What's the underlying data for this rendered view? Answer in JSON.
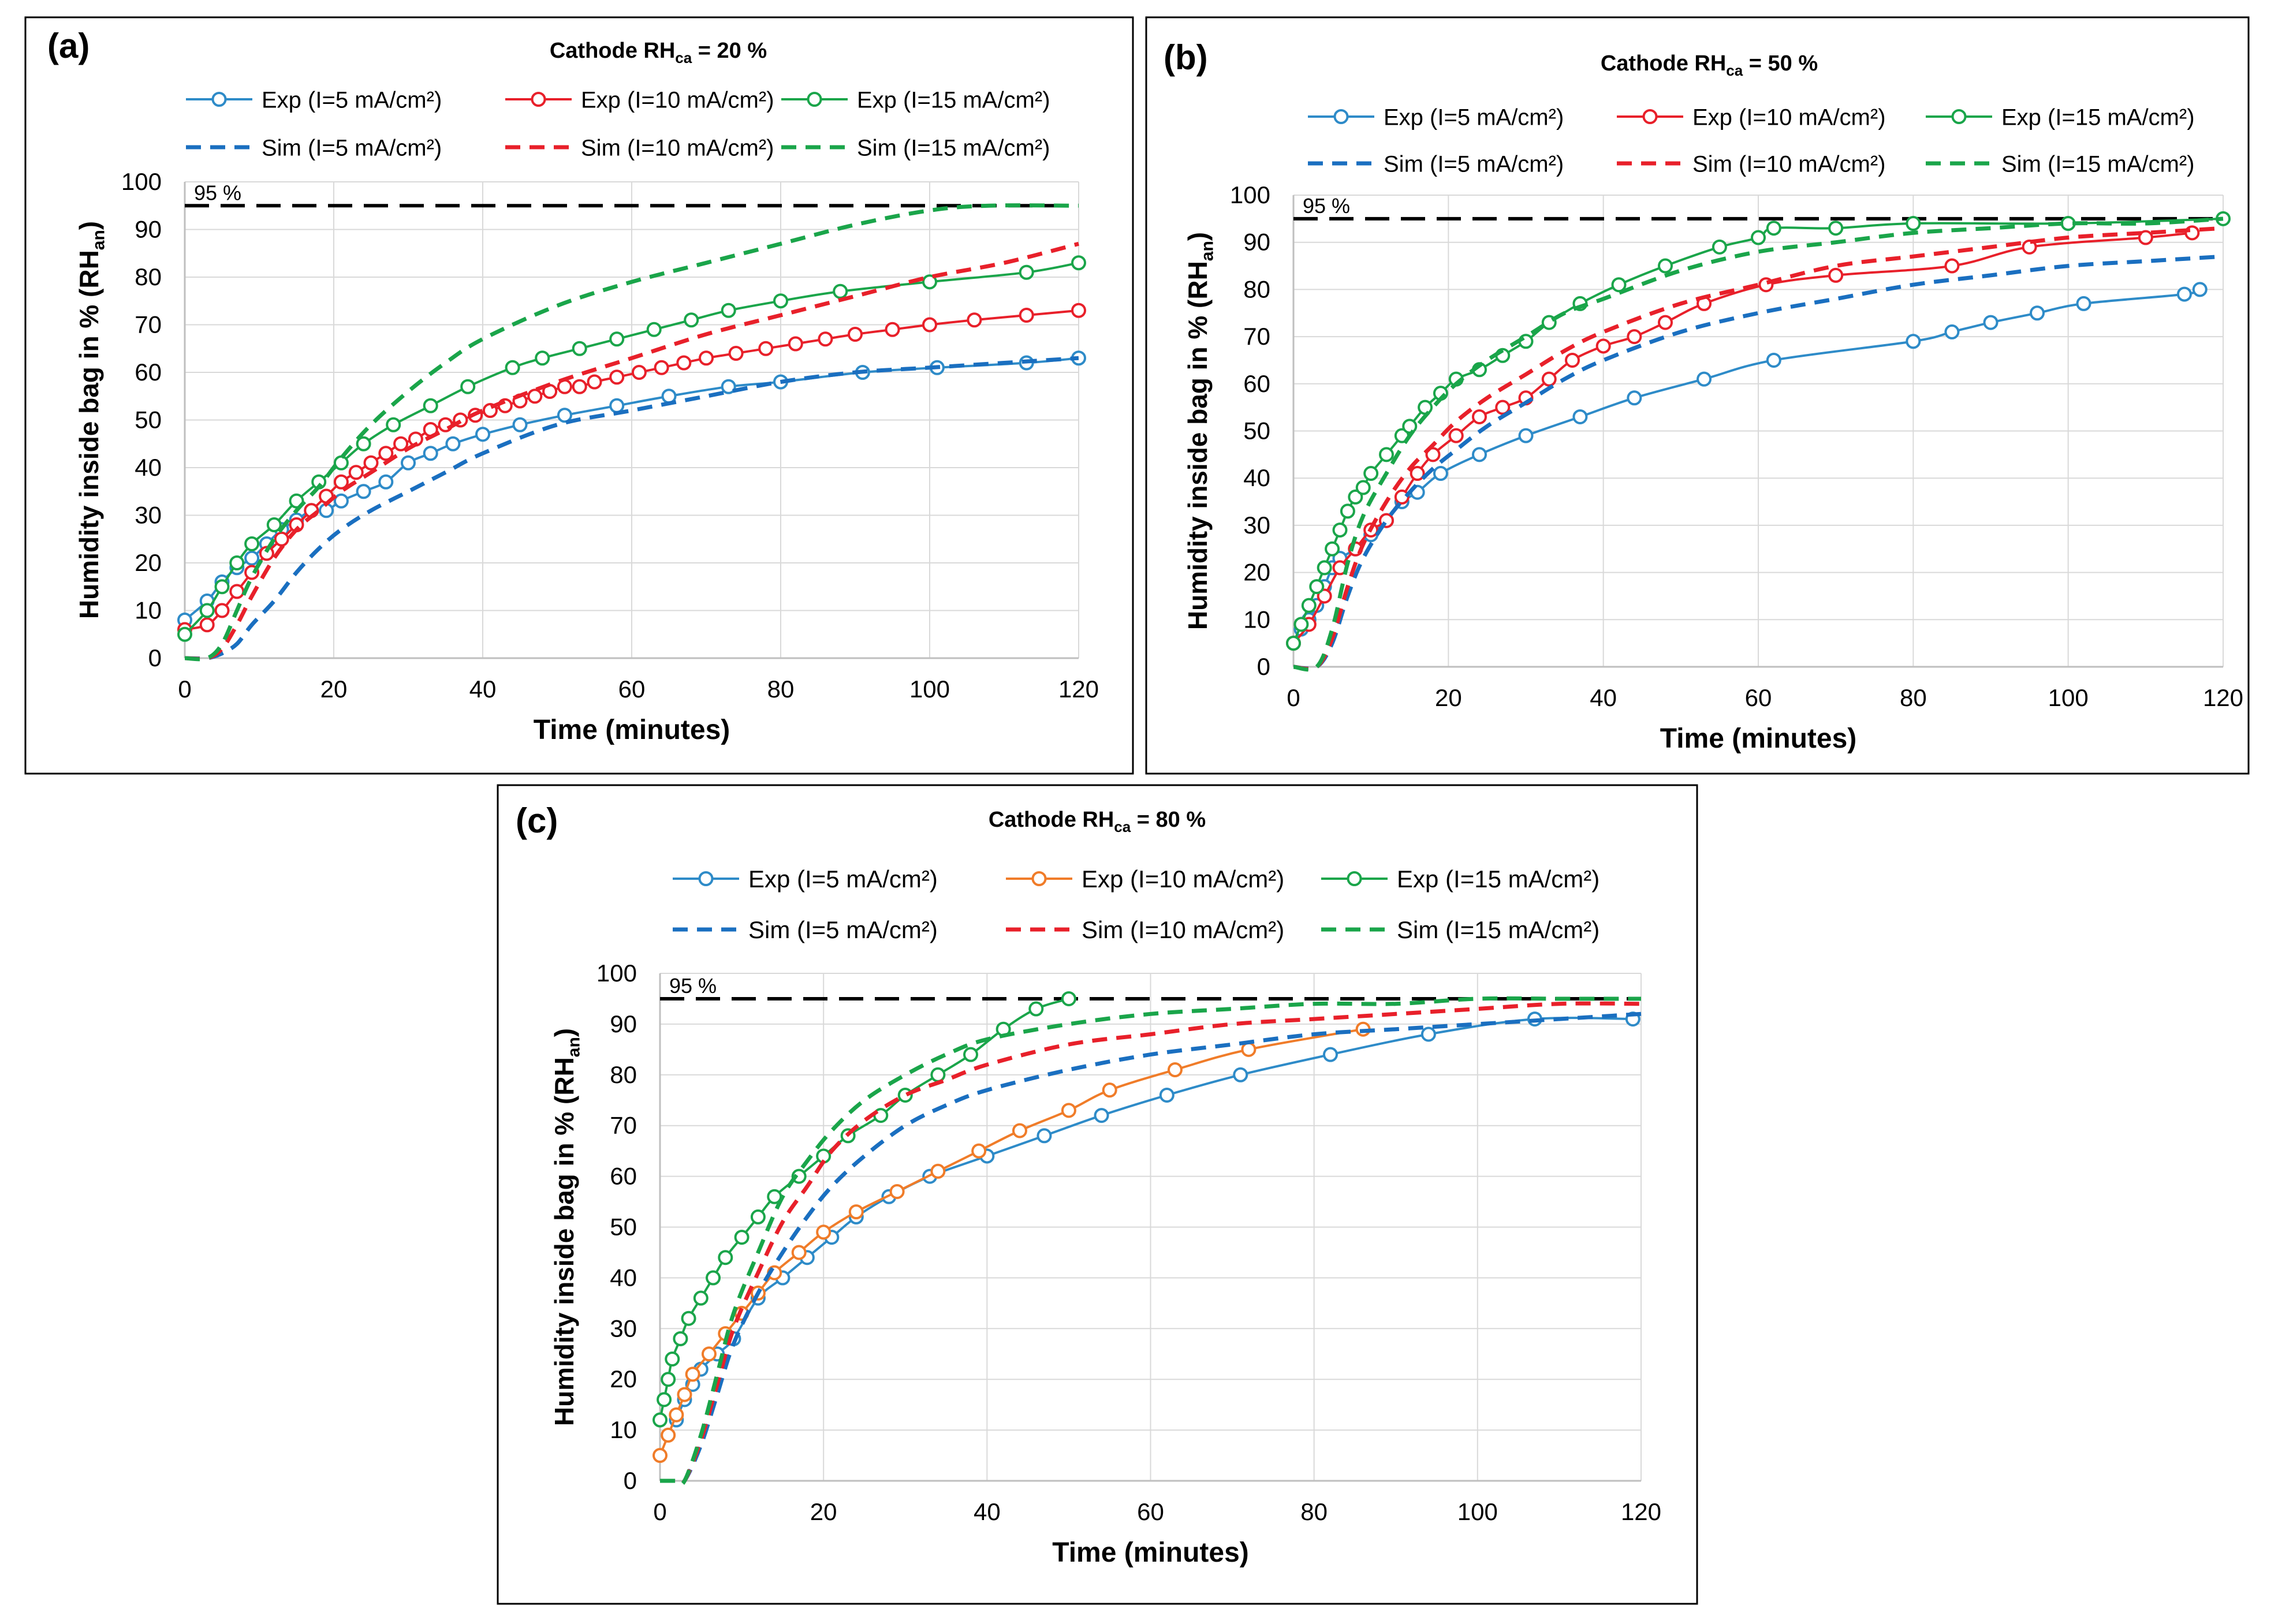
{
  "ref_label": "95 %",
  "chart_data": [
    {
      "type": "line",
      "panel_label": "(a)",
      "title_prefix": "Cathode RH",
      "title_sub": "ca",
      "title_suffix": " = 20 %",
      "xlabel": "Time (minutes)",
      "ylabel_prefix": "Humidity inside bag in % (RH",
      "ylabel_sub": "an",
      "ylabel_suffix": ")",
      "xlim": [
        0,
        120
      ],
      "ylim": [
        0,
        100
      ],
      "xticks": [
        0,
        20,
        40,
        60,
        80,
        100,
        120
      ],
      "yticks": [
        0,
        10,
        20,
        30,
        40,
        50,
        60,
        70,
        80,
        90,
        100
      ],
      "reference_line": {
        "y": 95
      },
      "series": [
        {
          "name": "Exp (I=5 mA/cm²)",
          "style": "exp",
          "color": "#2e8bc8",
          "x": [
            0,
            3,
            5,
            7,
            9,
            11,
            13,
            15,
            17,
            19,
            21,
            24,
            27,
            30,
            33,
            36,
            40,
            45,
            51,
            58,
            65,
            73,
            80,
            91,
            101,
            113,
            120
          ],
          "y": [
            8,
            12,
            16,
            19,
            21,
            24,
            27,
            29,
            31,
            31,
            33,
            35,
            37,
            41,
            43,
            45,
            47,
            49,
            51,
            53,
            55,
            57,
            58,
            60,
            61,
            62,
            63
          ]
        },
        {
          "name": "Exp (I=10 mA/cm²)",
          "style": "exp",
          "color": "#e8202a",
          "x": [
            0,
            3,
            5,
            7,
            9,
            11,
            13,
            15,
            17,
            19,
            21,
            23,
            25,
            27,
            29,
            31,
            33,
            35,
            37,
            39,
            41,
            43,
            45,
            47,
            49,
            51,
            53,
            55,
            58,
            61,
            64,
            67,
            70,
            74,
            78,
            82,
            86,
            90,
            95,
            100,
            106,
            113,
            120
          ],
          "y": [
            6,
            7,
            10,
            14,
            18,
            22,
            25,
            28,
            31,
            34,
            37,
            39,
            41,
            43,
            45,
            46,
            48,
            49,
            50,
            51,
            52,
            53,
            54,
            55,
            56,
            57,
            57,
            58,
            59,
            60,
            61,
            62,
            63,
            64,
            65,
            66,
            67,
            68,
            69,
            70,
            71,
            72,
            73
          ]
        },
        {
          "name": "Exp (I=15 mA/cm²)",
          "style": "exp",
          "color": "#1aa54a",
          "x": [
            0,
            3,
            5,
            7,
            9,
            12,
            15,
            18,
            21,
            24,
            28,
            33,
            38,
            44,
            48,
            53,
            58,
            63,
            68,
            73,
            80,
            88,
            100,
            113,
            120
          ],
          "y": [
            5,
            10,
            15,
            20,
            24,
            28,
            33,
            37,
            41,
            45,
            49,
            53,
            57,
            61,
            63,
            65,
            67,
            69,
            71,
            73,
            75,
            77,
            79,
            81,
            83
          ]
        },
        {
          "name": "Sim (I=5 mA/cm²)",
          "style": "sim",
          "color": "#1a6fc0",
          "x": [
            0,
            3,
            5,
            7,
            9,
            12,
            15,
            18,
            21,
            25,
            30,
            35,
            40,
            50,
            60,
            70,
            80,
            90,
            100,
            110,
            120
          ],
          "y": [
            0,
            0,
            1,
            3,
            7,
            12,
            18,
            23,
            27,
            31,
            35,
            39,
            43,
            49,
            52,
            55,
            58,
            60,
            61,
            62,
            63
          ]
        },
        {
          "name": "Sim (I=10 mA/cm²)",
          "style": "sim",
          "color": "#e8202a",
          "x": [
            0,
            3,
            5,
            7,
            9,
            12,
            15,
            18,
            21,
            25,
            30,
            35,
            40,
            50,
            60,
            70,
            80,
            90,
            100,
            110,
            120
          ],
          "y": [
            0,
            0,
            2,
            7,
            13,
            21,
            27,
            31,
            35,
            39,
            44,
            48,
            52,
            58,
            63,
            68,
            72,
            76,
            80,
            83,
            87
          ]
        },
        {
          "name": "Sim (I=15 mA/cm²)",
          "style": "sim",
          "color": "#1aa54a",
          "x": [
            0,
            3,
            5,
            7,
            9,
            12,
            15,
            18,
            21,
            25,
            30,
            35,
            40,
            50,
            60,
            70,
            80,
            90,
            100,
            108,
            120
          ],
          "y": [
            0,
            0,
            3,
            10,
            17,
            25,
            31,
            36,
            42,
            49,
            56,
            62,
            67,
            74,
            79,
            83,
            87,
            91,
            94,
            95,
            95
          ]
        }
      ]
    },
    {
      "type": "line",
      "panel_label": "(b)",
      "title_prefix": "Cathode RH",
      "title_sub": "ca",
      "title_suffix": " = 50 %",
      "xlabel": "Time (minutes)",
      "ylabel_prefix": "Humidity inside bag in % (RH",
      "ylabel_sub": "an",
      "ylabel_suffix": ")",
      "xlim": [
        0,
        120
      ],
      "ylim": [
        0,
        100
      ],
      "xticks": [
        0,
        20,
        40,
        60,
        80,
        100,
        120
      ],
      "yticks": [
        0,
        10,
        20,
        30,
        40,
        50,
        60,
        70,
        80,
        90,
        100
      ],
      "reference_line": {
        "y": 95
      },
      "series": [
        {
          "name": "Exp (I=5 mA/cm²)",
          "style": "exp",
          "color": "#2e8bc8",
          "x": [
            0,
            1,
            2,
            3,
            4,
            5,
            6,
            8,
            10,
            12,
            14,
            16,
            19,
            24,
            30,
            37,
            44,
            53,
            62,
            80,
            85,
            90,
            96,
            102,
            115,
            117
          ],
          "y": [
            5,
            8,
            10,
            13,
            17,
            21,
            23,
            25,
            28,
            31,
            35,
            37,
            41,
            45,
            49,
            53,
            57,
            61,
            65,
            69,
            71,
            73,
            75,
            77,
            79,
            80
          ]
        },
        {
          "name": "Exp (I=10 mA/cm²)",
          "style": "exp",
          "color": "#e8202a",
          "x": [
            0,
            2,
            4,
            6,
            8,
            10,
            12,
            14,
            16,
            18,
            21,
            24,
            27,
            30,
            33,
            36,
            40,
            44,
            48,
            53,
            61,
            70,
            85,
            95,
            110,
            116
          ],
          "y": [
            5,
            9,
            15,
            21,
            25,
            29,
            31,
            36,
            41,
            45,
            49,
            53,
            55,
            57,
            61,
            65,
            68,
            70,
            73,
            77,
            81,
            83,
            85,
            89,
            91,
            92
          ]
        },
        {
          "name": "Exp (I=15 mA/cm²)",
          "style": "exp",
          "color": "#1aa54a",
          "x": [
            0,
            1,
            2,
            3,
            4,
            5,
            6,
            7,
            8,
            9,
            10,
            12,
            14,
            15,
            17,
            19,
            21,
            24,
            27,
            30,
            33,
            37,
            42,
            48,
            55,
            60,
            62,
            70,
            80,
            100,
            120
          ],
          "y": [
            5,
            9,
            13,
            17,
            21,
            25,
            29,
            33,
            36,
            38,
            41,
            45,
            49,
            51,
            55,
            58,
            61,
            63,
            66,
            69,
            73,
            77,
            81,
            85,
            89,
            91,
            93,
            93,
            94,
            94,
            95
          ]
        },
        {
          "name": "Sim (I=5 mA/cm²)",
          "style": "sim",
          "color": "#1a6fc0",
          "x": [
            0,
            3,
            5,
            7,
            9,
            12,
            15,
            18,
            21,
            25,
            30,
            35,
            40,
            50,
            60,
            70,
            80,
            90,
            100,
            110,
            120
          ],
          "y": [
            0,
            0,
            5,
            15,
            23,
            31,
            37,
            42,
            46,
            51,
            56,
            61,
            65,
            71,
            75,
            78,
            81,
            83,
            85,
            86,
            87
          ]
        },
        {
          "name": "Sim (I=10 mA/cm²)",
          "style": "sim",
          "color": "#e8202a",
          "x": [
            0,
            3,
            5,
            7,
            9,
            12,
            15,
            18,
            21,
            25,
            30,
            35,
            40,
            50,
            60,
            70,
            80,
            90,
            100,
            110,
            120
          ],
          "y": [
            0,
            0,
            6,
            17,
            26,
            35,
            42,
            47,
            52,
            57,
            62,
            67,
            71,
            77,
            81,
            85,
            87,
            89,
            91,
            92,
            93
          ]
        },
        {
          "name": "Sim (I=15 mA/cm²)",
          "style": "sim",
          "color": "#1aa54a",
          "x": [
            0,
            3,
            5,
            7,
            9,
            12,
            15,
            18,
            21,
            25,
            30,
            35,
            40,
            50,
            60,
            70,
            80,
            90,
            100,
            110,
            120
          ],
          "y": [
            0,
            0,
            8,
            22,
            32,
            41,
            49,
            55,
            60,
            65,
            70,
            75,
            78,
            84,
            88,
            90,
            92,
            93,
            94,
            94,
            95
          ]
        }
      ]
    },
    {
      "type": "line",
      "panel_label": "(c)",
      "title_prefix": "Cathode RH",
      "title_sub": "ca",
      "title_suffix": " = 80 %",
      "xlabel": "Time (minutes)",
      "ylabel_prefix": "Humidity inside bag in % (RH",
      "ylabel_sub": "an",
      "ylabel_suffix": ")",
      "xlim": [
        0,
        120
      ],
      "ylim": [
        0,
        100
      ],
      "xticks": [
        0,
        20,
        40,
        60,
        80,
        100,
        120
      ],
      "yticks": [
        0,
        10,
        20,
        30,
        40,
        50,
        60,
        70,
        80,
        90,
        100
      ],
      "reference_line": {
        "y": 95
      },
      "series": [
        {
          "name": "Exp (I=5 mA/cm²)",
          "style": "exp",
          "color": "#2e8bc8",
          "x": [
            2,
            3,
            4,
            5,
            7,
            9,
            12,
            15,
            18,
            21,
            24,
            28,
            33,
            40,
            47,
            54,
            62,
            71,
            82,
            94,
            107,
            119
          ],
          "y": [
            12,
            16,
            19,
            22,
            25,
            28,
            36,
            40,
            44,
            48,
            52,
            56,
            60,
            64,
            68,
            72,
            76,
            80,
            84,
            88,
            91,
            91
          ]
        },
        {
          "name": "Exp (I=10 mA/cm²)",
          "style": "exp",
          "color": "#f07c29",
          "x": [
            0,
            1,
            2,
            3,
            4,
            6,
            8,
            10,
            12,
            14,
            17,
            20,
            24,
            29,
            34,
            39,
            44,
            50,
            55,
            63,
            72,
            86
          ],
          "y": [
            5,
            9,
            13,
            17,
            21,
            25,
            29,
            33,
            37,
            41,
            45,
            49,
            53,
            57,
            61,
            65,
            69,
            73,
            77,
            81,
            85,
            89
          ]
        },
        {
          "name": "Exp (I=15 mA/cm²)",
          "style": "exp",
          "color": "#1aa54a",
          "x": [
            0,
            0.5,
            1,
            1.5,
            2.5,
            3.5,
            5,
            6.5,
            8,
            10,
            12,
            14,
            17,
            20,
            23,
            27,
            30,
            34,
            38,
            42,
            46,
            50
          ],
          "y": [
            12,
            16,
            20,
            24,
            28,
            32,
            36,
            40,
            44,
            48,
            52,
            56,
            60,
            64,
            68,
            72,
            76,
            80,
            84,
            89,
            93,
            95
          ]
        },
        {
          "name": "Sim (I=5 mA/cm²)",
          "style": "sim",
          "color": "#1a6fc0",
          "x": [
            0,
            2,
            3,
            5,
            7,
            9,
            12,
            15,
            18,
            21,
            25,
            30,
            35,
            40,
            50,
            60,
            70,
            80,
            90,
            100,
            110,
            120
          ],
          "y": [
            0,
            0,
            0,
            7,
            17,
            27,
            37,
            45,
            52,
            58,
            64,
            70,
            74,
            77,
            81,
            84,
            86,
            88,
            89,
            90,
            91,
            92
          ]
        },
        {
          "name": "Sim (I=10 mA/cm²)",
          "style": "sim",
          "color": "#e8202a",
          "x": [
            0,
            2,
            3,
            5,
            7,
            9,
            12,
            15,
            18,
            21,
            25,
            30,
            35,
            40,
            50,
            60,
            70,
            80,
            90,
            100,
            110,
            120
          ],
          "y": [
            0,
            0,
            0,
            8,
            19,
            30,
            41,
            51,
            58,
            65,
            71,
            76,
            79,
            82,
            86,
            88,
            90,
            91,
            92,
            93,
            94,
            94
          ]
        },
        {
          "name": "Sim (I=15 mA/cm²)",
          "style": "sim",
          "color": "#1aa54a",
          "x": [
            0,
            2,
            3,
            5,
            7,
            9,
            12,
            15,
            18,
            21,
            25,
            30,
            35,
            40,
            50,
            60,
            70,
            80,
            90,
            100,
            110,
            120
          ],
          "y": [
            0,
            0,
            0,
            9,
            21,
            33,
            45,
            56,
            63,
            69,
            75,
            80,
            84,
            87,
            90,
            92,
            93,
            94,
            94,
            95,
            95,
            95
          ]
        }
      ]
    }
  ]
}
